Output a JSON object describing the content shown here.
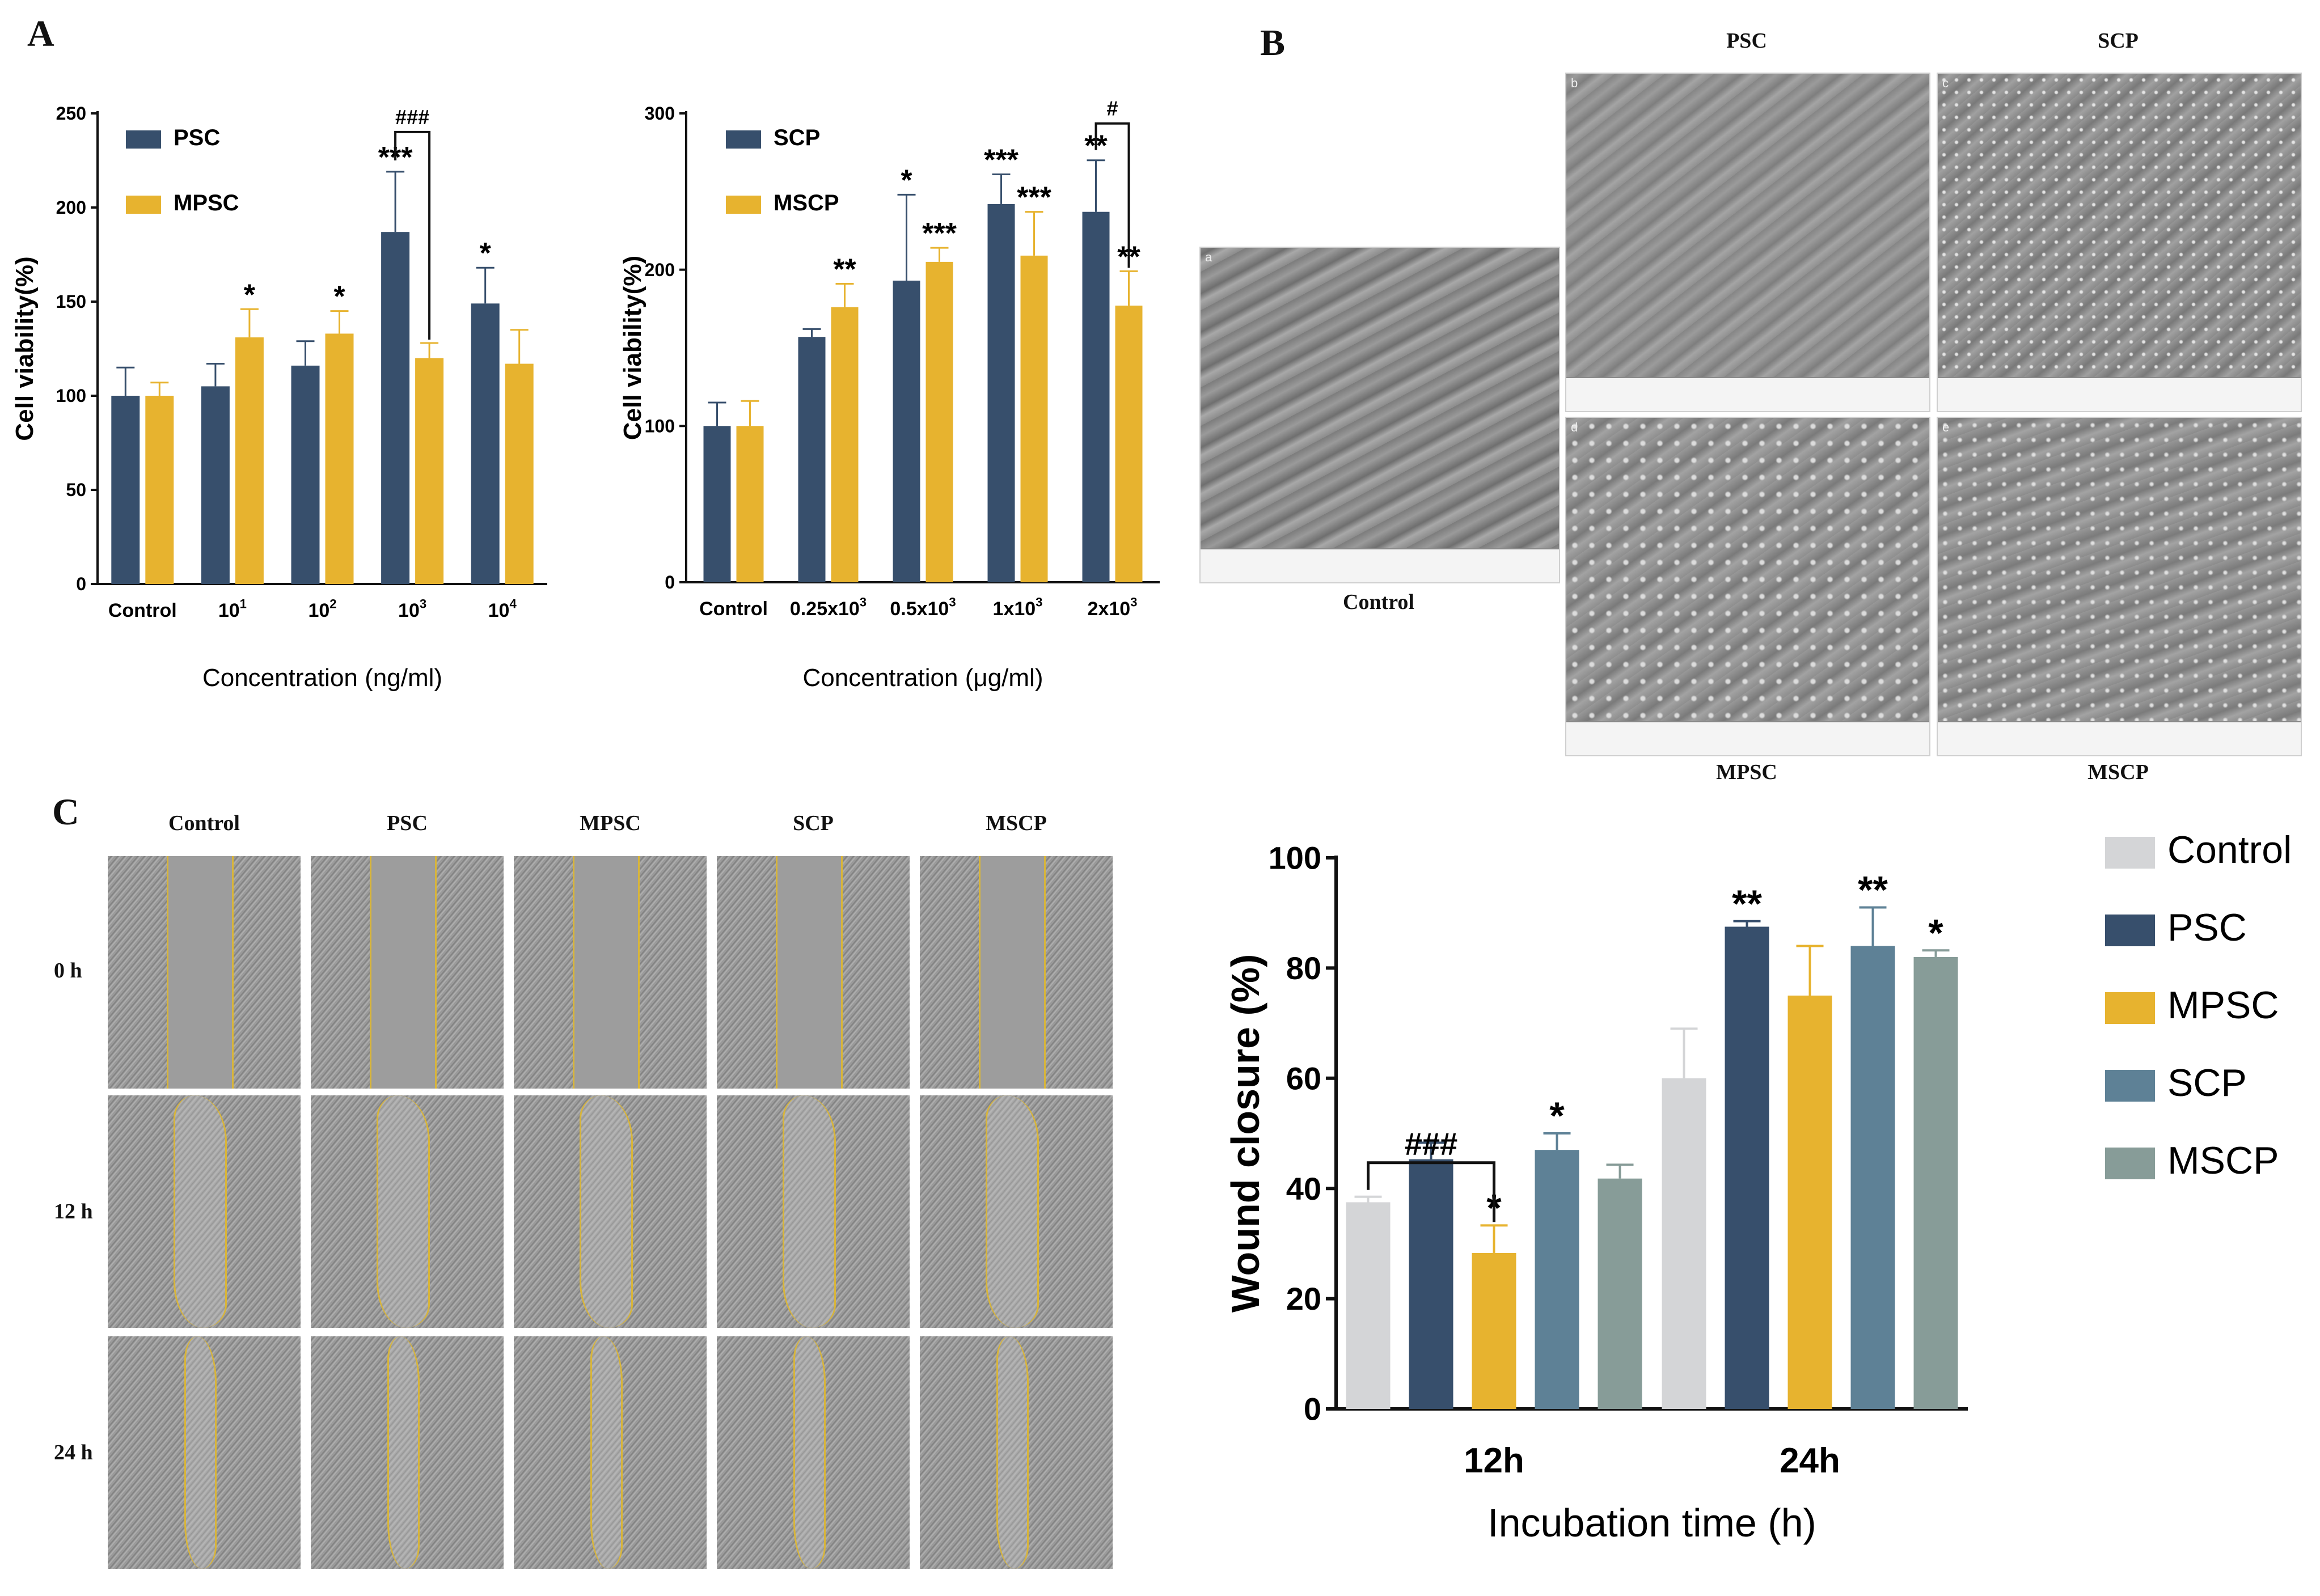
{
  "panel_letters": {
    "a": "A",
    "b": "B",
    "c": "C"
  },
  "colors": {
    "psc": "#374f6c",
    "mpsc": "#e7b32f",
    "control": "#d4d5d7",
    "scp": "#5e8196",
    "mscp": "#879c98"
  },
  "chart_data": [
    {
      "id": "A1",
      "type": "bar",
      "ylabel": "Cell viability(%)",
      "xlabel": "Concentration (ng/ml)",
      "categories": [
        "Control",
        "10",
        "10",
        "10",
        "10"
      ],
      "category_superscripts": [
        "",
        "1",
        "2",
        "3",
        "4"
      ],
      "yticks": [
        "0",
        "50",
        "100",
        "150",
        "200",
        "250"
      ],
      "ylim": [
        0,
        250
      ],
      "series": [
        {
          "name": "PSC",
          "color": "#374f6c",
          "values": [
            100,
            105,
            116,
            187,
            149
          ],
          "errors": [
            15,
            12,
            13,
            32,
            19
          ],
          "marks": [
            "",
            "",
            "",
            "***",
            "*"
          ]
        },
        {
          "name": "MPSC",
          "color": "#e7b32f",
          "values": [
            100,
            131,
            133,
            120,
            117
          ],
          "errors": [
            7,
            15,
            12,
            8,
            18
          ],
          "marks": [
            "",
            "*",
            "*",
            "",
            ""
          ]
        }
      ],
      "bracket": {
        "label": "###",
        "category_index": 3
      },
      "legend_position": "top-left"
    },
    {
      "id": "A2",
      "type": "bar",
      "ylabel": "Cell viability(%)",
      "xlabel": "Concentration (μg/ml)",
      "categories": [
        "Control",
        "0.25x10",
        "0.5x10",
        "1x10",
        "2x10"
      ],
      "category_superscripts": [
        "",
        "3",
        "3",
        "3",
        "3"
      ],
      "yticks": [
        "0",
        "100",
        "200",
        "300"
      ],
      "ylim": [
        0,
        300
      ],
      "series": [
        {
          "name": "SCP",
          "color": "#374f6c",
          "values": [
            100,
            157,
            193,
            242,
            237
          ],
          "errors": [
            15,
            5,
            55,
            19,
            33
          ],
          "marks": [
            "",
            "",
            "*",
            "***",
            "**"
          ]
        },
        {
          "name": "MSCP",
          "color": "#e7b32f",
          "values": [
            100,
            176,
            205,
            209,
            177
          ],
          "errors": [
            16,
            15,
            9,
            28,
            22
          ],
          "marks": [
            "",
            "**",
            "***",
            "***",
            "**"
          ]
        }
      ],
      "bracket": {
        "label": "#",
        "category_index": 4
      },
      "legend_position": "top-left"
    },
    {
      "id": "C",
      "type": "bar",
      "ylabel": "Wound closure (%)",
      "xlabel": "Incubation time (h)",
      "categories": [
        "12h",
        "24h"
      ],
      "yticks": [
        "0",
        "20",
        "40",
        "60",
        "80",
        "100"
      ],
      "ylim": [
        0,
        100
      ],
      "series": [
        {
          "name": "Control",
          "color": "#d4d5d7",
          "values": [
            37.5,
            60
          ],
          "errors": [
            1,
            9
          ],
          "marks": [
            "",
            ""
          ]
        },
        {
          "name": "PSC",
          "color": "#374f6c",
          "values": [
            45.3,
            87.5
          ],
          "errors": [
            3,
            1
          ],
          "marks": [
            "",
            "**"
          ]
        },
        {
          "name": "MPSC",
          "color": "#e7b32f",
          "values": [
            28.3,
            75
          ],
          "errors": [
            5,
            9
          ],
          "marks": [
            "*",
            ""
          ]
        },
        {
          "name": "SCP",
          "color": "#5e8196",
          "values": [
            47,
            84
          ],
          "errors": [
            3,
            7
          ],
          "marks": [
            "*",
            "**"
          ]
        },
        {
          "name": "MSCP",
          "color": "#879c98",
          "values": [
            41.8,
            82
          ],
          "errors": [
            2.5,
            1.2
          ],
          "marks": [
            "",
            "*"
          ]
        }
      ],
      "bracket": {
        "label": "###",
        "category_index": 0
      },
      "legend_position": "right"
    }
  ],
  "sem": {
    "col_headers": [
      "PSC",
      "SCP"
    ],
    "labels": {
      "a": "a",
      "b": "b",
      "c": "c",
      "d": "d",
      "e": "e"
    },
    "captions": {
      "control": "Control",
      "mpsc": "MPSC",
      "mscp": "MSCP"
    }
  },
  "wound": {
    "col_headers": [
      "Control",
      "PSC",
      "MPSC",
      "SCP",
      "MSCP"
    ],
    "row_headers": [
      "0 h",
      "12 h",
      "24 h"
    ]
  }
}
